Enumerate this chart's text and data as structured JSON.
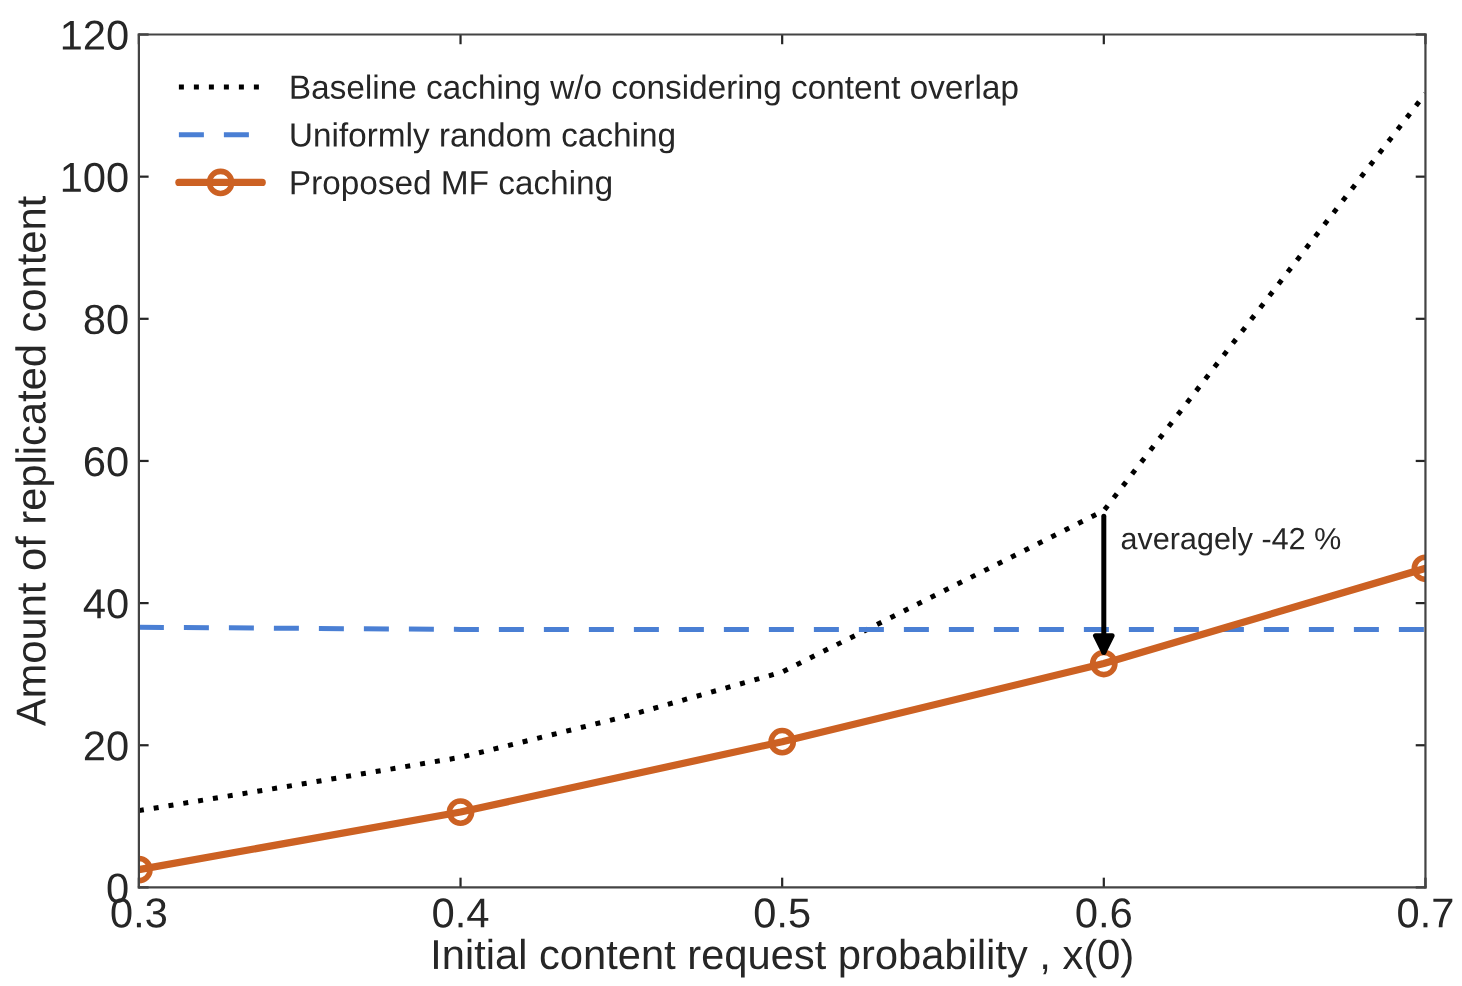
{
  "chart_data": {
    "type": "line",
    "xlabel": "Initial content request probability , x(0)",
    "ylabel": "Amount of replicated content",
    "xlim": [
      0.3,
      0.7
    ],
    "xticks": [
      0.3,
      0.4,
      0.5,
      0.6,
      0.7
    ],
    "ylim": [
      0,
      120
    ],
    "yticks": [
      0,
      20,
      40,
      60,
      80,
      100,
      120
    ],
    "legend": "top left",
    "grid": false,
    "series": [
      {
        "name": "Baseline caching w/o considering content overlap",
        "color": "#000000",
        "line_style": "dotted",
        "marker": "none",
        "x": [
          0.3,
          0.35,
          0.4,
          0.45,
          0.5,
          0.6,
          0.7
        ],
        "values": [
          10.8,
          14.5,
          18.3,
          23.9,
          30.3,
          53,
          111.7
        ]
      },
      {
        "name": "Uniformly random caching",
        "color": "#4a7fd4",
        "line_style": "dashed",
        "marker": "none",
        "x": [
          0.3,
          0.4,
          0.5,
          0.6,
          0.7
        ],
        "values": [
          36.6,
          36.3,
          36.3,
          36.3,
          36.3
        ]
      },
      {
        "name": "Proposed MF caching",
        "color": "#cc6123",
        "line_style": "solid",
        "marker": "circle",
        "x": [
          0.3,
          0.4,
          0.5,
          0.6,
          0.7
        ],
        "values": [
          2.5,
          10.6,
          20.5,
          31.5,
          44.9
        ]
      }
    ],
    "annotations": [
      {
        "text": "averagely -42 %",
        "x": 0.6,
        "y": 31.5
      }
    ]
  }
}
